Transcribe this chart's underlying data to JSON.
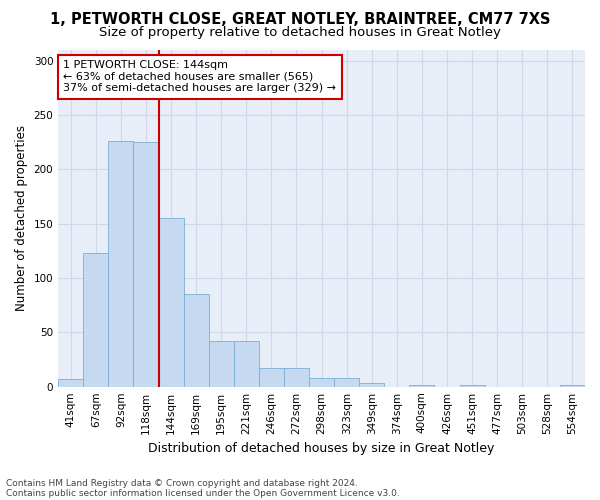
{
  "title_line1": "1, PETWORTH CLOSE, GREAT NOTLEY, BRAINTREE, CM77 7XS",
  "title_line2": "Size of property relative to detached houses in Great Notley",
  "xlabel": "Distribution of detached houses by size in Great Notley",
  "ylabel": "Number of detached properties",
  "bar_labels": [
    "41sqm",
    "67sqm",
    "92sqm",
    "118sqm",
    "144sqm",
    "169sqm",
    "195sqm",
    "221sqm",
    "246sqm",
    "272sqm",
    "298sqm",
    "323sqm",
    "349sqm",
    "374sqm",
    "400sqm",
    "426sqm",
    "451sqm",
    "477sqm",
    "503sqm",
    "528sqm",
    "554sqm"
  ],
  "bar_values": [
    7,
    123,
    226,
    225,
    155,
    85,
    42,
    42,
    17,
    17,
    8,
    8,
    3,
    0,
    2,
    0,
    2,
    0,
    0,
    0,
    2
  ],
  "bar_color": "#c5d9f0",
  "bar_edge_color": "#7bafd4",
  "vline_color": "#cc0000",
  "annotation_text_line1": "1 PETWORTH CLOSE: 144sqm",
  "annotation_text_line2": "← 63% of detached houses are smaller (565)",
  "annotation_text_line3": "37% of semi-detached houses are larger (329) →",
  "annotation_box_color": "white",
  "annotation_box_edge": "#cc0000",
  "ylim": [
    0,
    310
  ],
  "yticks": [
    0,
    50,
    100,
    150,
    200,
    250,
    300
  ],
  "grid_color": "#d0d8e8",
  "bg_color": "#e8eef8",
  "footnote_line1": "Contains HM Land Registry data © Crown copyright and database right 2024.",
  "footnote_line2": "Contains public sector information licensed under the Open Government Licence v3.0.",
  "title_fontsize": 10.5,
  "subtitle_fontsize": 9.5,
  "tick_fontsize": 7.5,
  "ylabel_fontsize": 8.5,
  "xlabel_fontsize": 9,
  "annot_fontsize": 8,
  "footnote_fontsize": 6.5
}
